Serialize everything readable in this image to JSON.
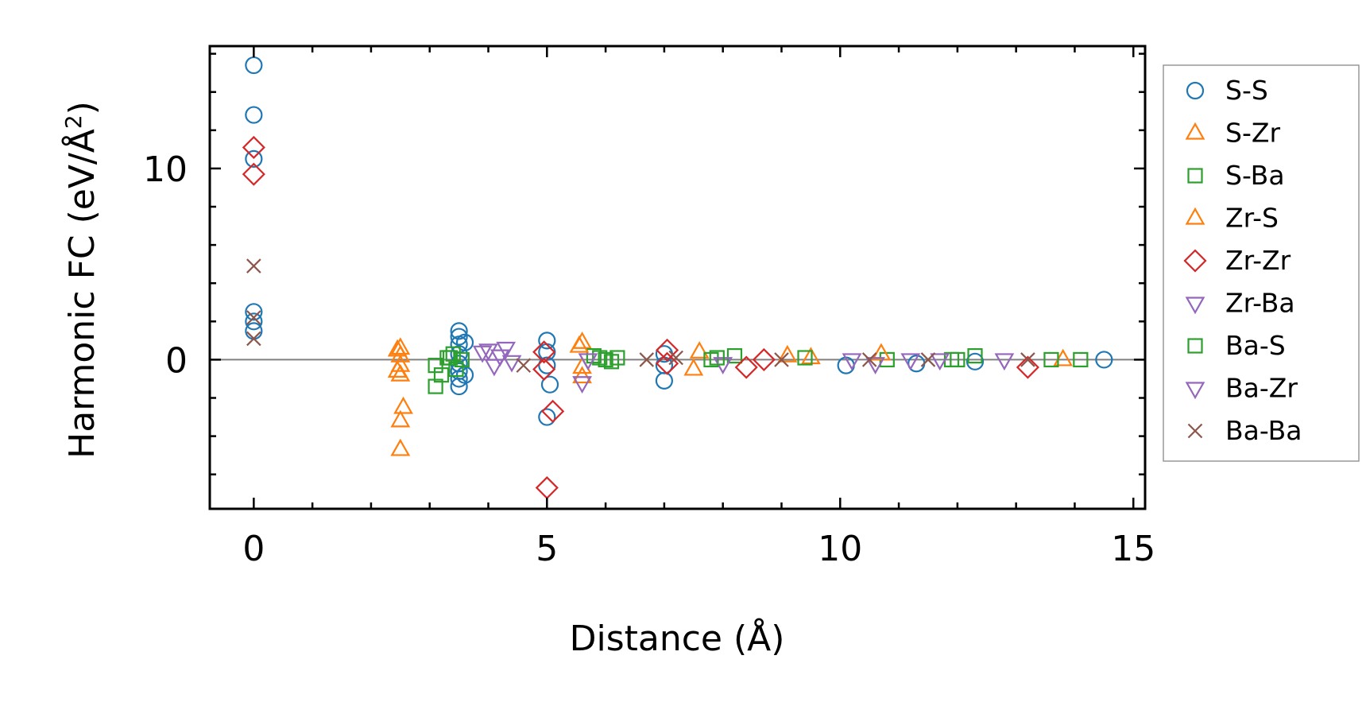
{
  "chart_data": {
    "type": "scatter",
    "xlabel": "Distance (Å)",
    "ylabel_main": "Harmonic FC (eV/Å",
    "ylabel_sup": "2",
    "ylabel_close": ")",
    "xlim": [
      -0.75,
      15.2
    ],
    "ylim": [
      -7.8,
      16.4
    ],
    "xticks": [
      0,
      5,
      10,
      15
    ],
    "xtick_labels": [
      "0",
      "5",
      "10",
      "15"
    ],
    "yticks": [
      0,
      10
    ],
    "ytick_labels": [
      "0",
      "10"
    ],
    "zero_line": 0,
    "legend_position": "outside-right",
    "series": [
      {
        "name": "S-S",
        "marker": "circle",
        "color": "#1f77b4",
        "points": [
          [
            0,
            15.4
          ],
          [
            0,
            12.8
          ],
          [
            0,
            10.5
          ],
          [
            0,
            2.5
          ],
          [
            0,
            2.0
          ],
          [
            0,
            1.5
          ],
          [
            3.5,
            1.5
          ],
          [
            3.5,
            1.2
          ],
          [
            3.5,
            0.8
          ],
          [
            3.5,
            0.3
          ],
          [
            3.5,
            -0.2
          ],
          [
            3.5,
            -0.6
          ],
          [
            3.5,
            -1.0
          ],
          [
            3.5,
            -1.4
          ],
          [
            3.6,
            0.9
          ],
          [
            3.6,
            -0.8
          ],
          [
            5.0,
            1.0
          ],
          [
            5.0,
            0.4
          ],
          [
            5.0,
            -0.3
          ],
          [
            5.0,
            -3.0
          ],
          [
            5.05,
            -1.3
          ],
          [
            7.0,
            0.3
          ],
          [
            7.0,
            -0.3
          ],
          [
            7.0,
            -1.1
          ],
          [
            10.1,
            -0.3
          ],
          [
            11.3,
            -0.2
          ],
          [
            12.3,
            -0.1
          ],
          [
            14.5,
            0.0
          ]
        ]
      },
      {
        "name": "S-Zr",
        "marker": "triangle-up",
        "color": "#ff7f0e",
        "points": [
          [
            2.5,
            0.6
          ],
          [
            2.5,
            0.2
          ],
          [
            2.5,
            -0.3
          ],
          [
            2.5,
            -0.8
          ],
          [
            2.55,
            -2.5
          ],
          [
            2.5,
            -3.2
          ],
          [
            2.5,
            -4.7
          ],
          [
            5.6,
            0.9
          ],
          [
            5.6,
            -0.4
          ],
          [
            5.6,
            -0.9
          ],
          [
            7.5,
            -0.5
          ],
          [
            7.6,
            0.4
          ],
          [
            9.5,
            0.1
          ],
          [
            13.8,
            0.0
          ]
        ]
      },
      {
        "name": "S-Ba",
        "marker": "square",
        "color": "#2ca02c",
        "points": [
          [
            3.1,
            -1.4
          ],
          [
            3.1,
            -0.3
          ],
          [
            3.3,
            0.1
          ],
          [
            3.4,
            0.3
          ],
          [
            3.45,
            -0.5
          ],
          [
            3.55,
            0.0
          ],
          [
            5.8,
            0.2
          ],
          [
            6.0,
            0.0
          ],
          [
            6.2,
            0.1
          ],
          [
            7.8,
            0.0
          ],
          [
            8.2,
            0.2
          ],
          [
            9.4,
            0.1
          ],
          [
            10.8,
            0.0
          ],
          [
            12.0,
            0.0
          ],
          [
            12.3,
            0.2
          ],
          [
            13.6,
            0.0
          ],
          [
            14.1,
            0.0
          ]
        ]
      },
      {
        "name": "Zr-S",
        "marker": "triangle-up",
        "color": "#ff7f0e",
        "points": [
          [
            2.45,
            0.5
          ],
          [
            2.45,
            -0.6
          ],
          [
            5.55,
            0.7
          ],
          [
            9.1,
            0.2
          ],
          [
            10.7,
            0.3
          ]
        ]
      },
      {
        "name": "Zr-Zr",
        "marker": "diamond",
        "color": "#d62728",
        "points": [
          [
            0,
            11.1
          ],
          [
            0,
            9.7
          ],
          [
            4.95,
            0.4
          ],
          [
            4.95,
            -0.5
          ],
          [
            5.1,
            -2.7
          ],
          [
            5.0,
            -6.7
          ],
          [
            7.05,
            0.5
          ],
          [
            7.05,
            -0.2
          ],
          [
            8.4,
            -0.4
          ],
          [
            8.7,
            0.0
          ],
          [
            13.2,
            -0.4
          ]
        ]
      },
      {
        "name": "Zr-Ba",
        "marker": "triangle-down",
        "color": "#9467bd",
        "points": [
          [
            4.0,
            0.5
          ],
          [
            4.2,
            0.2
          ],
          [
            4.4,
            -0.1
          ],
          [
            5.6,
            -1.2
          ],
          [
            8.0,
            -0.2
          ],
          [
            10.2,
            0.0
          ],
          [
            11.2,
            0.0
          ]
        ]
      },
      {
        "name": "Ba-S",
        "marker": "square",
        "color": "#2ca02c",
        "points": [
          [
            3.2,
            -0.8
          ],
          [
            3.35,
            0.1
          ],
          [
            5.9,
            0.1
          ],
          [
            6.1,
            -0.1
          ],
          [
            7.9,
            0.1
          ],
          [
            11.9,
            0.0
          ]
        ]
      },
      {
        "name": "Ba-Zr",
        "marker": "triangle-down",
        "color": "#9467bd",
        "points": [
          [
            3.9,
            0.4
          ],
          [
            4.1,
            -0.3
          ],
          [
            4.3,
            0.6
          ],
          [
            5.7,
            0.0
          ],
          [
            10.6,
            -0.2
          ],
          [
            11.7,
            0.0
          ],
          [
            12.8,
            0.0
          ]
        ]
      },
      {
        "name": "Ba-Ba",
        "marker": "x",
        "color": "#8c564b",
        "points": [
          [
            0,
            4.9
          ],
          [
            0,
            2.2
          ],
          [
            0,
            1.1
          ],
          [
            4.6,
            -0.3
          ],
          [
            6.7,
            0.0
          ],
          [
            7.2,
            0.1
          ],
          [
            9.0,
            0.0
          ],
          [
            10.5,
            0.0
          ],
          [
            11.5,
            0.0
          ],
          [
            13.2,
            0.0
          ]
        ]
      }
    ]
  }
}
